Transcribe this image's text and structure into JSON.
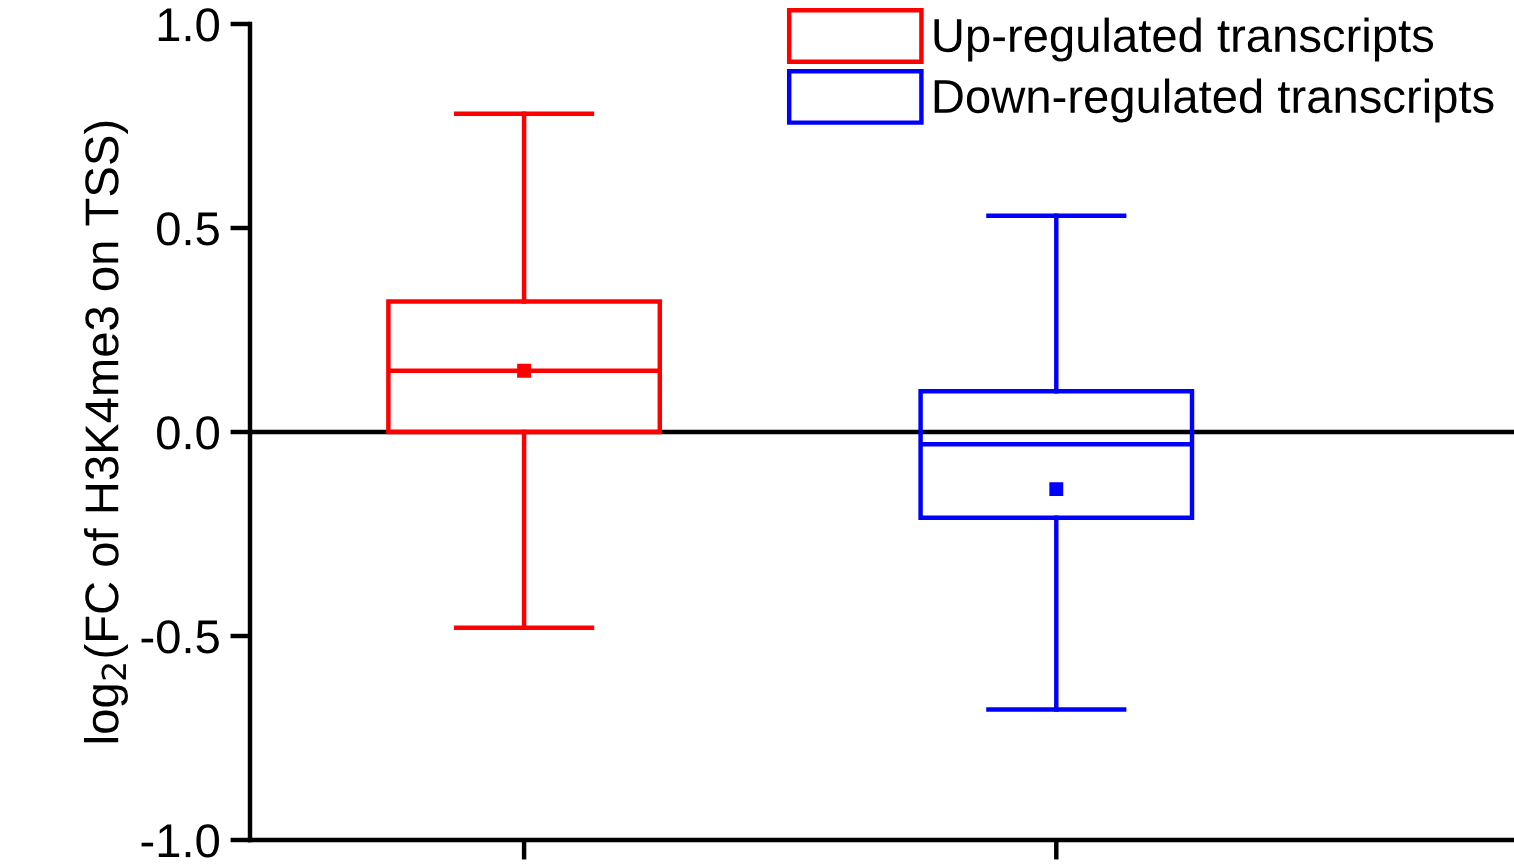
{
  "chart_data": {
    "type": "box",
    "ylabel": "log$_{2}$(FC of H3K4me3 on TSS)",
    "categories": [
      null,
      null
    ],
    "series": [
      {
        "name": "Up-regulated transcripts",
        "color": "#ff0000",
        "boxes": [
          {
            "low": -0.48,
            "q1": 0.0,
            "median": 0.15,
            "q3": 0.32,
            "high": 0.78,
            "mean": 0.15
          },
          null
        ]
      },
      {
        "name": "Down-regulated transcripts",
        "color": "#0000ff",
        "boxes": [
          null,
          {
            "low": -0.68,
            "q1": -0.21,
            "median": -0.03,
            "q3": 0.1,
            "high": 0.53,
            "mean": -0.14
          }
        ]
      }
    ],
    "ylim": [
      -1.0,
      1.0
    ],
    "yticks": [
      {
        "value": -1.0,
        "label": "-1.0"
      },
      {
        "value": -0.5,
        "label": "-0.5"
      },
      {
        "value": 0.0,
        "label": "0.0"
      },
      {
        "value": 0.5,
        "label": "0.5"
      },
      {
        "value": 1.0,
        "label": "1.0"
      }
    ],
    "ref_lines": [
      {
        "axis": "y",
        "value": 0,
        "color": "#000000"
      }
    ],
    "legend": "top right",
    "grid": false,
    "marker": "square"
  }
}
